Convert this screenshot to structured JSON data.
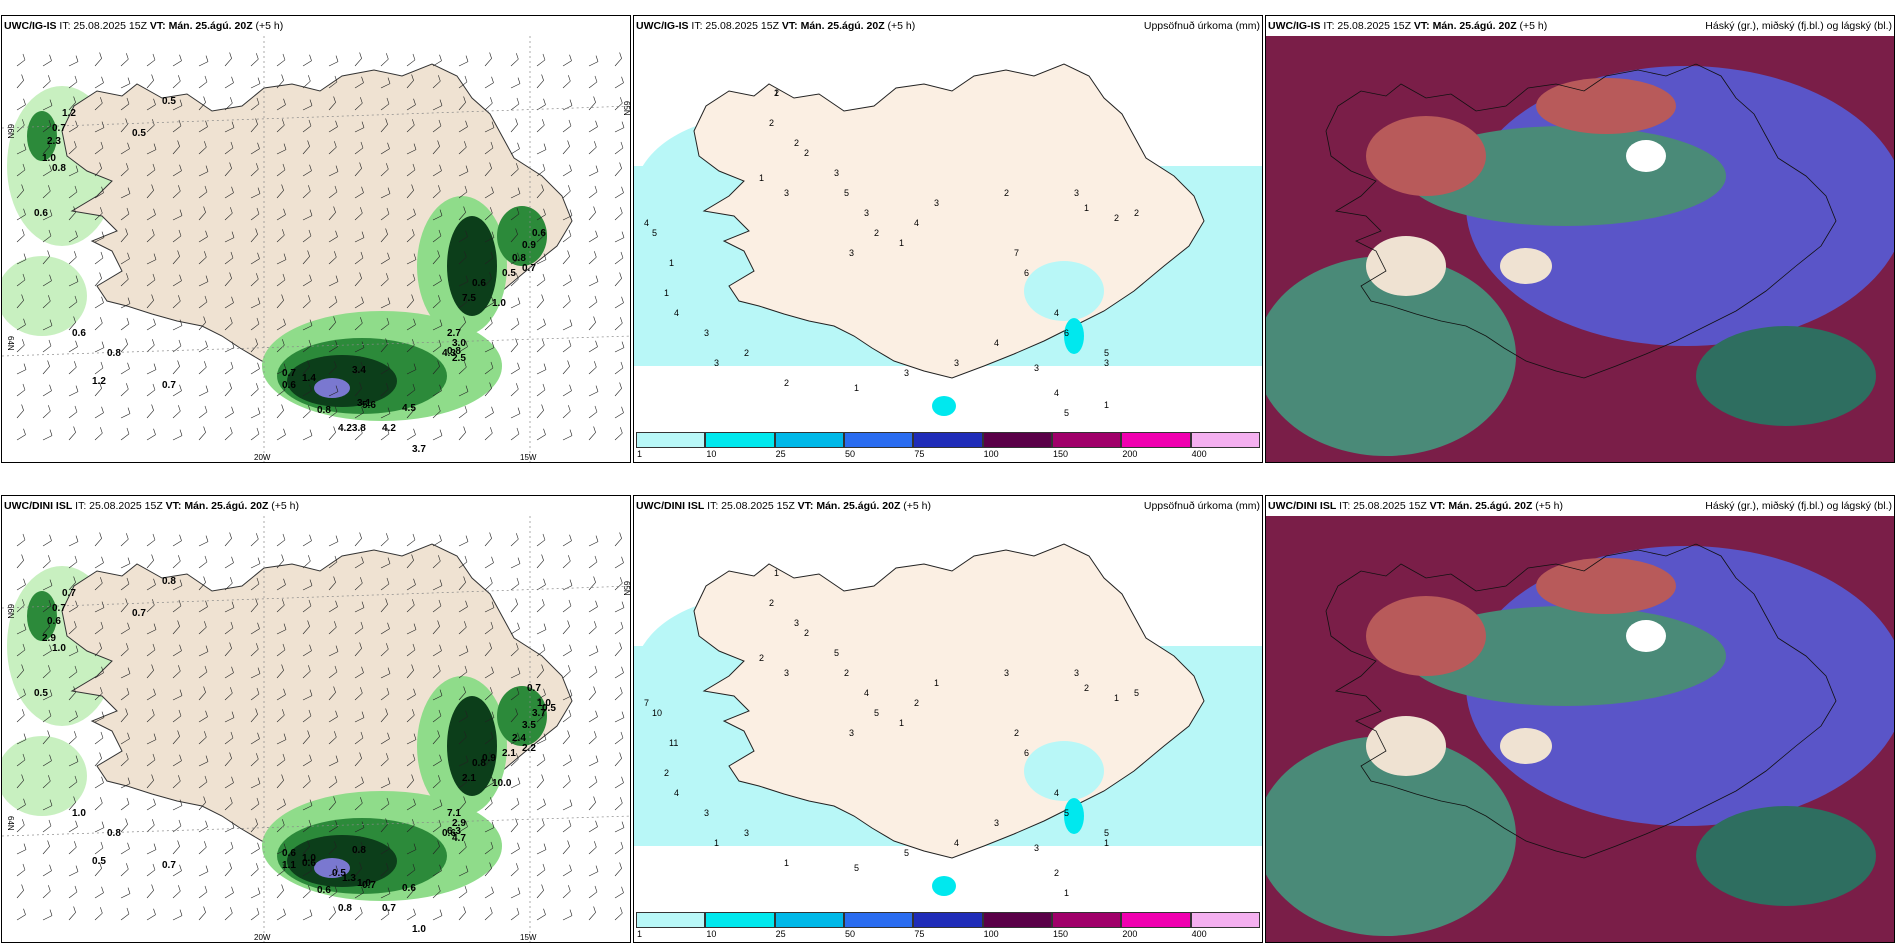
{
  "row1": {
    "wind": {
      "model": "UWC/IG-IS",
      "it": "IT: 25.08.2025 15Z",
      "vt": "VT: Mán. 25.ágú. 20Z",
      "plus": "(+5 h)"
    },
    "precip": {
      "model": "UWC/IG-IS",
      "it": "IT: 25.08.2025 15Z",
      "vt": "VT: Mán. 25.ágú. 20Z",
      "plus": "(+5 h)",
      "right": "Uppsöfnuð úrkoma (mm)"
    },
    "cloud": {
      "model": "UWC/IG-IS",
      "it": "IT: 25.08.2025 15Z",
      "vt": "VT: Mán. 25.ágú. 20Z",
      "plus": "(+5 h)",
      "right": "Háský (gr.), miðský (fj.bl.) og lágský (bl.)"
    }
  },
  "row2": {
    "wind": {
      "model": "UWC/DINI ISL",
      "it": "IT: 25.08.2025 15Z",
      "vt": "VT: Mán. 25.ágú. 20Z",
      "plus": "(+5 h)"
    },
    "precip": {
      "model": "UWC/DINI ISL",
      "it": "IT: 25.08.2025 15Z",
      "vt": "VT: Mán. 25.ágú. 20Z",
      "plus": "(+5 h)",
      "right": "Uppsöfnuð úrkoma (mm)"
    },
    "cloud": {
      "model": "UWC/DINI ISL",
      "it": "IT: 25.08.2025 15Z",
      "vt": "VT: Mán. 25.ágú. 20Z",
      "plus": "(+5 h)",
      "right": "Háský (gr.), miðský (fj.bl.) og lágský (bl.)"
    }
  },
  "colorbar": {
    "ticks": [
      "1",
      "10",
      "25",
      "50",
      "75",
      "100",
      "150",
      "200",
      "400"
    ],
    "colors": [
      "#b8f7f7",
      "#00e8ee",
      "#00b8e8",
      "#2a6cf0",
      "#1f2cb8",
      "#5a0048",
      "#a0006a",
      "#f000b0",
      "#f4b0f0"
    ]
  },
  "axis_labels": {
    "lat66": "66N",
    "lat64": "64N",
    "lat65": "65N",
    "lat63": "63N",
    "lon20": "20W",
    "lon15": "15W"
  },
  "map_values": {
    "row1_wind": [
      "0.5",
      "1.2",
      "0.7",
      "2.3",
      "0.5",
      "1.0",
      "0.8",
      "0.6",
      "0.6",
      "0.8",
      "1.2",
      "0.7",
      "0.7",
      "0.6",
      "1.4",
      "3.4",
      "3.1",
      "0.8",
      "5.6",
      "4.5",
      "4.23.8",
      "4.2",
      "3.7",
      "2.7",
      "3.0",
      "4.3",
      "0.8",
      "2.5",
      "1.0",
      "7.5",
      "0.6",
      "0.5",
      "0.8",
      "0.7",
      "0.9",
      "0.6"
    ],
    "row2_wind": [
      "0.8",
      "0.7",
      "0.7",
      "0.6",
      "0.7",
      "2.9",
      "1.0",
      "0.5",
      "1.0",
      "0.8",
      "0.5",
      "0.7",
      "0.6",
      "1.1",
      "1.0",
      "0.8",
      "1.0",
      "0.6",
      "0.7",
      "0.6",
      "0.8",
      "0.7",
      "1.0",
      "7.1",
      "2.9",
      "0.6",
      "6.3",
      "4.7",
      "10.0",
      "2.1",
      "0.8",
      "2.1",
      "2.4",
      "2.2",
      "3.5",
      "3.7",
      "1.0",
      "0.7",
      "0.5",
      "0.9",
      "0.6",
      "0.5",
      "1.3"
    ],
    "row1_precip": [
      "1",
      "2",
      "2",
      "2",
      "1",
      "3",
      "3",
      "5",
      "3",
      "2",
      "3",
      "1",
      "4",
      "3",
      "2",
      "3",
      "1",
      "2",
      "2",
      "7",
      "6",
      "4",
      "6",
      "5",
      "3",
      "4",
      "5",
      "1",
      "1",
      "4",
      "3",
      "3",
      "2",
      "2",
      "1",
      "3",
      "3",
      "4",
      "3",
      "4",
      "5",
      "1",
      "2"
    ],
    "row2_precip": [
      "1",
      "2",
      "3",
      "2",
      "2",
      "3",
      "5",
      "2",
      "4",
      "5",
      "3",
      "1",
      "2",
      "1",
      "3",
      "3",
      "2",
      "1",
      "5",
      "2",
      "6",
      "4",
      "5",
      "5",
      "1",
      "7",
      "10",
      "11",
      "2",
      "4",
      "3",
      "1",
      "3",
      "1",
      "5",
      "5",
      "4",
      "3",
      "3",
      "2",
      "1"
    ]
  }
}
